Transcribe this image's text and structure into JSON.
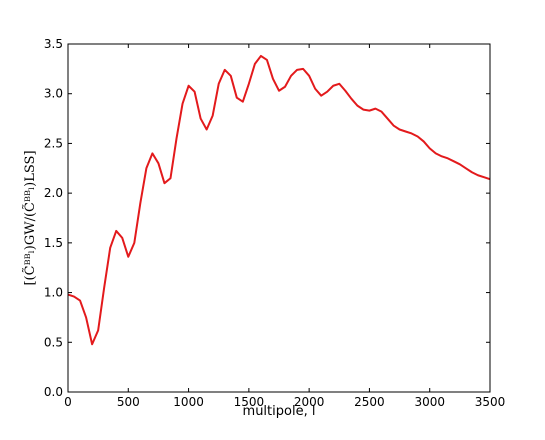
{
  "chart_data": {
    "type": "line",
    "x_label": "multipole, l",
    "y_label": "[(C̃ᴮᴮₗ)GW/(C̃ᴮᴮₗ)LSS]",
    "x": [
      0,
      50,
      100,
      150,
      200,
      250,
      300,
      350,
      400,
      450,
      500,
      550,
      600,
      650,
      700,
      750,
      800,
      850,
      900,
      950,
      1000,
      1050,
      1100,
      1150,
      1200,
      1250,
      1300,
      1350,
      1400,
      1450,
      1500,
      1550,
      1600,
      1650,
      1700,
      1750,
      1800,
      1850,
      1900,
      1950,
      2000,
      2050,
      2100,
      2150,
      2200,
      2250,
      2300,
      2350,
      2400,
      2450,
      2500,
      2550,
      2600,
      2650,
      2700,
      2750,
      2800,
      2850,
      2900,
      2950,
      3000,
      3050,
      3100,
      3150,
      3200,
      3250,
      3300,
      3350,
      3400,
      3450,
      3500
    ],
    "series": [
      {
        "color": "#e31a1c",
        "values": [
          0.98,
          0.96,
          0.92,
          0.75,
          0.48,
          0.62,
          1.05,
          1.45,
          1.62,
          1.55,
          1.36,
          1.5,
          1.9,
          2.25,
          2.4,
          2.3,
          2.1,
          2.15,
          2.55,
          2.9,
          3.08,
          3.02,
          2.75,
          2.64,
          2.78,
          3.1,
          3.24,
          3.18,
          2.96,
          2.92,
          3.1,
          3.3,
          3.38,
          3.34,
          3.15,
          3.03,
          3.07,
          3.18,
          3.24,
          3.25,
          3.18,
          3.05,
          2.98,
          3.02,
          3.08,
          3.1,
          3.03,
          2.95,
          2.88,
          2.84,
          2.83,
          2.85,
          2.82,
          2.75,
          2.68,
          2.64,
          2.62,
          2.6,
          2.57,
          2.52,
          2.45,
          2.4,
          2.37,
          2.35,
          2.32,
          2.29,
          2.25,
          2.21,
          2.18,
          2.16,
          2.14
        ]
      }
    ],
    "xlim": [
      0,
      3500
    ],
    "xticks": [
      0,
      500,
      1000,
      1500,
      2000,
      2500,
      3000,
      3500
    ],
    "ylim": [
      0,
      3.5
    ],
    "yticks": [
      {
        "value": 0,
        "label": "0.0"
      },
      {
        "value": 0.5,
        "label": "0.5"
      },
      {
        "value": 1,
        "label": "1.0"
      },
      {
        "value": 1.5,
        "label": "1.5"
      },
      {
        "value": 2,
        "label": "2.0"
      },
      {
        "value": 2.5,
        "label": "2.5"
      },
      {
        "value": 3,
        "label": "3.0"
      },
      {
        "value": 3.5,
        "label": "3.5"
      }
    ]
  }
}
